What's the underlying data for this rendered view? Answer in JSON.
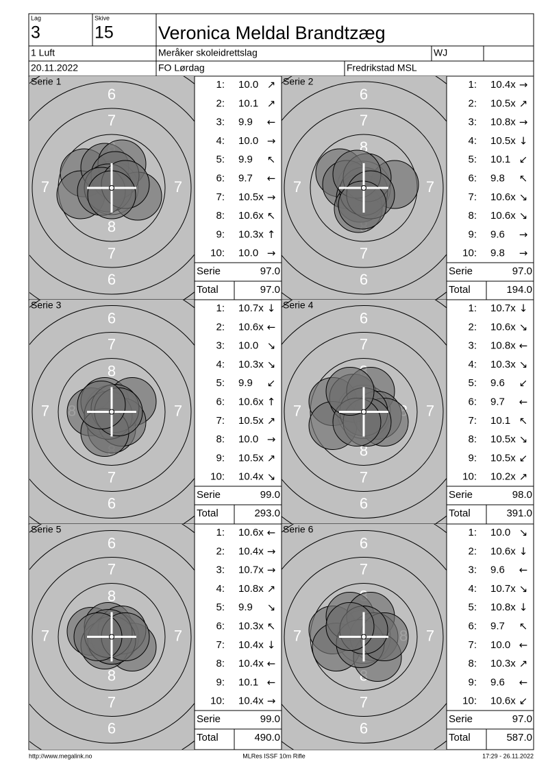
{
  "header": {
    "lag_label": "Lag",
    "lag": "3",
    "skive_label": "Skive",
    "skive": "15",
    "name": "Veronica Meldal Brandtzæg",
    "class": "1 Luft",
    "club": "Meråker skoleidrettslag",
    "category": "WJ",
    "date": "20.11.2022",
    "event": "FO Lørdag",
    "organizer": "Fredrikstad MSL"
  },
  "series": [
    {
      "title": "Serie 1",
      "ring_labels": {
        "top": [
          "6",
          "7",
          "8"
        ],
        "bottom": [
          "6",
          "7",
          "8"
        ],
        "left": [
          "7"
        ],
        "right": [
          "7"
        ]
      },
      "holes": [
        [
          -40,
          -22
        ],
        [
          -45,
          10
        ],
        [
          -10,
          -30
        ],
        [
          15,
          -35
        ],
        [
          38,
          12
        ],
        [
          5,
          -18
        ],
        [
          -5,
          0
        ],
        [
          -15,
          5
        ],
        [
          20,
          -5
        ],
        [
          0,
          10
        ]
      ],
      "shots": [
        {
          "no": "1:",
          "score": "10.0",
          "dir": "↗"
        },
        {
          "no": "2:",
          "score": "10.1",
          "dir": "↗"
        },
        {
          "no": "3:",
          "score": "9.9",
          "dir": "←"
        },
        {
          "no": "4:",
          "score": "10.0",
          "dir": "→"
        },
        {
          "no": "5:",
          "score": "9.9",
          "dir": "↖"
        },
        {
          "no": "6:",
          "score": "9.7",
          "dir": "←"
        },
        {
          "no": "7:",
          "score": "10.5x",
          "dir": "→"
        },
        {
          "no": "8:",
          "score": "10.6x",
          "dir": "↖"
        },
        {
          "no": "9:",
          "score": "10.3x",
          "dir": "↑"
        },
        {
          "no": "10:",
          "score": "10.0",
          "dir": "→"
        }
      ],
      "serie_label": "Serie",
      "serie": "97.0",
      "total_label": "Total",
      "total": "97.0"
    },
    {
      "title": "Serie 2",
      "ring_labels": {
        "top": [
          "6",
          "7",
          "8"
        ],
        "bottom": [
          "6",
          "7",
          "8"
        ],
        "left": [
          "7"
        ],
        "right": [
          "7"
        ]
      },
      "holes": [
        [
          -35,
          -22
        ],
        [
          -25,
          -5
        ],
        [
          -5,
          15
        ],
        [
          45,
          -5
        ],
        [
          -8,
          30
        ],
        [
          0,
          5
        ],
        [
          5,
          -15
        ],
        [
          -10,
          -20
        ],
        [
          10,
          10
        ],
        [
          -2,
          25
        ]
      ],
      "shots": [
        {
          "no": "1:",
          "score": "10.4x",
          "dir": "→"
        },
        {
          "no": "2:",
          "score": "10.5x",
          "dir": "↗"
        },
        {
          "no": "3:",
          "score": "10.8x",
          "dir": "→"
        },
        {
          "no": "4:",
          "score": "10.5x",
          "dir": "↓"
        },
        {
          "no": "5:",
          "score": "10.1",
          "dir": "↙"
        },
        {
          "no": "6:",
          "score": "9.8",
          "dir": "↖"
        },
        {
          "no": "7:",
          "score": "10.6x",
          "dir": "↘"
        },
        {
          "no": "8:",
          "score": "10.6x",
          "dir": "↘"
        },
        {
          "no": "9:",
          "score": "9.6",
          "dir": "→"
        },
        {
          "no": "10:",
          "score": "9.8",
          "dir": "→"
        }
      ],
      "serie_label": "Serie",
      "serie": "97.0",
      "total_label": "Total",
      "total": "194.0"
    },
    {
      "title": "Serie 3",
      "ring_labels": {
        "top": [
          "6",
          "7",
          "8"
        ],
        "bottom": [
          "6",
          "7",
          "8"
        ],
        "left": [
          "7",
          "8"
        ],
        "right": [
          "7"
        ]
      },
      "holes": [
        [
          -30,
          0
        ],
        [
          -10,
          -15
        ],
        [
          30,
          -15
        ],
        [
          0,
          25
        ],
        [
          15,
          15
        ],
        [
          -5,
          5
        ],
        [
          5,
          -5
        ],
        [
          -10,
          30
        ],
        [
          10,
          0
        ],
        [
          -15,
          -10
        ]
      ],
      "shots": [
        {
          "no": "1:",
          "score": "10.7x",
          "dir": "↓"
        },
        {
          "no": "2:",
          "score": "10.6x",
          "dir": "←"
        },
        {
          "no": "3:",
          "score": "10.0",
          "dir": "↘"
        },
        {
          "no": "4:",
          "score": "10.3x",
          "dir": "↘"
        },
        {
          "no": "5:",
          "score": "9.9",
          "dir": "↙"
        },
        {
          "no": "6:",
          "score": "10.6x",
          "dir": "↑"
        },
        {
          "no": "7:",
          "score": "10.5x",
          "dir": "↗"
        },
        {
          "no": "8:",
          "score": "10.0",
          "dir": "→"
        },
        {
          "no": "9:",
          "score": "10.5x",
          "dir": "↗"
        },
        {
          "no": "10:",
          "score": "10.4x",
          "dir": "↘"
        }
      ],
      "serie_label": "Serie",
      "serie": "99.0",
      "total_label": "Total",
      "total": "293.0"
    },
    {
      "title": "Serie 4",
      "ring_labels": {
        "top": [
          "6",
          "7",
          "8"
        ],
        "bottom": [
          "6",
          "7",
          "8"
        ],
        "left": [
          "7"
        ],
        "right": [
          "7",
          "8"
        ]
      },
      "holes": [
        [
          -45,
          -15
        ],
        [
          -45,
          20
        ],
        [
          -15,
          -20
        ],
        [
          10,
          -30
        ],
        [
          20,
          5
        ],
        [
          30,
          15
        ],
        [
          0,
          0
        ],
        [
          5,
          15
        ],
        [
          -10,
          15
        ],
        [
          -20,
          -30
        ]
      ],
      "shots": [
        {
          "no": "1:",
          "score": "10.7x",
          "dir": "↓"
        },
        {
          "no": "2:",
          "score": "10.6x",
          "dir": "↘"
        },
        {
          "no": "3:",
          "score": "10.8x",
          "dir": "←"
        },
        {
          "no": "4:",
          "score": "10.3x",
          "dir": "↘"
        },
        {
          "no": "5:",
          "score": "9.6",
          "dir": "↙"
        },
        {
          "no": "6:",
          "score": "9.7",
          "dir": "←"
        },
        {
          "no": "7:",
          "score": "10.1",
          "dir": "↖"
        },
        {
          "no": "8:",
          "score": "10.5x",
          "dir": "↘"
        },
        {
          "no": "9:",
          "score": "10.5x",
          "dir": "↙"
        },
        {
          "no": "10:",
          "score": "10.2x",
          "dir": "↗"
        }
      ],
      "serie_label": "Serie",
      "serie": "98.0",
      "total_label": "Total",
      "total": "391.0"
    },
    {
      "title": "Serie 5",
      "ring_labels": {
        "top": [
          "6",
          "7",
          "8"
        ],
        "bottom": [
          "6",
          "7",
          "8"
        ],
        "left": [
          "7"
        ],
        "right": [
          "7"
        ]
      },
      "holes": [
        [
          -30,
          -8
        ],
        [
          -5,
          -15
        ],
        [
          5,
          0
        ],
        [
          30,
          15
        ],
        [
          -10,
          12
        ],
        [
          15,
          -10
        ],
        [
          0,
          5
        ],
        [
          -5,
          -5
        ],
        [
          20,
          0
        ],
        [
          -20,
          0
        ]
      ],
      "shots": [
        {
          "no": "1:",
          "score": "10.6x",
          "dir": "←"
        },
        {
          "no": "2:",
          "score": "10.4x",
          "dir": "→"
        },
        {
          "no": "3:",
          "score": "10.7x",
          "dir": "→"
        },
        {
          "no": "4:",
          "score": "10.8x",
          "dir": "↗"
        },
        {
          "no": "5:",
          "score": "9.9",
          "dir": "↘"
        },
        {
          "no": "6:",
          "score": "10.3x",
          "dir": "↖"
        },
        {
          "no": "7:",
          "score": "10.4x",
          "dir": "↓"
        },
        {
          "no": "8:",
          "score": "10.4x",
          "dir": "←"
        },
        {
          "no": "9:",
          "score": "10.1",
          "dir": "←"
        },
        {
          "no": "10:",
          "score": "10.4x",
          "dir": "→"
        }
      ],
      "serie_label": "Serie",
      "serie": "99.0",
      "total_label": "Total",
      "total": "490.0"
    },
    {
      "title": "Serie 6",
      "ring_labels": {
        "top": [
          "6",
          "7",
          "8"
        ],
        "bottom": [
          "6",
          "7",
          "8"
        ],
        "left": [
          "7"
        ],
        "right": [
          "7",
          "8"
        ]
      },
      "holes": [
        [
          -45,
          -10
        ],
        [
          -40,
          15
        ],
        [
          -20,
          -30
        ],
        [
          10,
          -30
        ],
        [
          15,
          0
        ],
        [
          20,
          30
        ],
        [
          -5,
          10
        ],
        [
          30,
          0
        ],
        [
          0,
          -10
        ],
        [
          -20,
          -15
        ]
      ],
      "shots": [
        {
          "no": "1:",
          "score": "10.0",
          "dir": "↘"
        },
        {
          "no": "2:",
          "score": "10.6x",
          "dir": "↓"
        },
        {
          "no": "3:",
          "score": "9.6",
          "dir": "←"
        },
        {
          "no": "4:",
          "score": "10.7x",
          "dir": "↘"
        },
        {
          "no": "5:",
          "score": "10.8x",
          "dir": "↓"
        },
        {
          "no": "6:",
          "score": "9.7",
          "dir": "↖"
        },
        {
          "no": "7:",
          "score": "10.0",
          "dir": "←"
        },
        {
          "no": "8:",
          "score": "10.3x",
          "dir": "↗"
        },
        {
          "no": "9:",
          "score": "9.6",
          "dir": "←"
        },
        {
          "no": "10:",
          "score": "10.6x",
          "dir": "↙"
        }
      ],
      "serie_label": "Serie",
      "serie": "97.0",
      "total_label": "Total",
      "total": "587.0"
    }
  ],
  "footer": {
    "url": "http://www.megalink.no",
    "program": "MLRes ISSF 10m Rifle",
    "timestamp": "17:29 - 26.11.2022"
  }
}
